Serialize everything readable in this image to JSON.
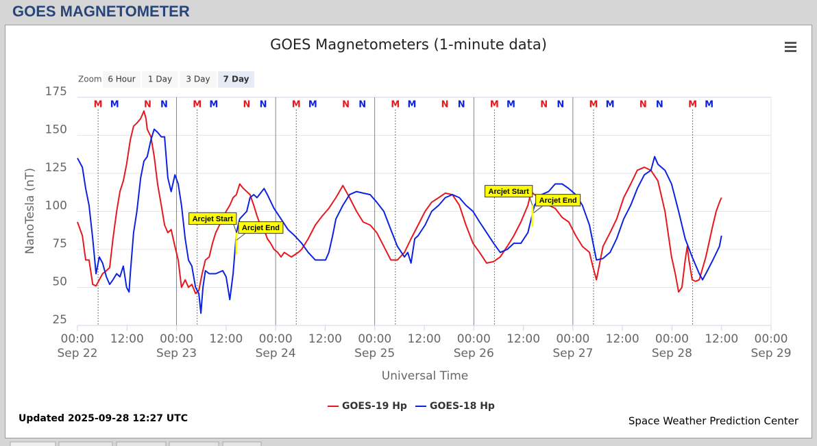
{
  "header": {
    "title": "GOES MAGNETOMETER"
  },
  "chart_data": {
    "type": "line",
    "title": "GOES Magnetometers (1-minute data)",
    "zoom": {
      "label": "Zoom",
      "buttons": [
        "6 Hour",
        "1 Day",
        "3 Day",
        "7 Day"
      ],
      "active": 3
    },
    "y_label": "NanoTesla (nT)",
    "x_label": "Universal Time",
    "xlim": [
      0,
      168
    ],
    "xticks": [
      {
        "value": 0,
        "label": "00:00",
        "date": "Sep 22"
      },
      {
        "value": 12,
        "label": "12:00"
      },
      {
        "value": 24,
        "label": "00:00",
        "date": "Sep 23"
      },
      {
        "value": 36,
        "label": "12:00"
      },
      {
        "value": 48,
        "label": "00:00",
        "date": "Sep 24"
      },
      {
        "value": 60,
        "label": "12:00"
      },
      {
        "value": 72,
        "label": "00:00",
        "date": "Sep 25"
      },
      {
        "value": 84,
        "label": "12:00"
      },
      {
        "value": 96,
        "label": "00:00",
        "date": "Sep 26"
      },
      {
        "value": 108,
        "label": "12:00"
      },
      {
        "value": 120,
        "label": "00:00",
        "date": "Sep 27"
      },
      {
        "value": 132,
        "label": "12:00"
      },
      {
        "value": 144,
        "label": "00:00",
        "date": "Sep 28"
      },
      {
        "value": 156,
        "label": "12:00"
      },
      {
        "value": 168,
        "label": "00:00",
        "date": "Sep 29"
      }
    ],
    "ylim": [
      25,
      175
    ],
    "yticks": [
      25,
      50,
      75,
      100,
      125,
      150,
      175
    ],
    "grid": true,
    "day_lines": [
      24,
      48,
      72,
      96,
      120
    ],
    "markers": [
      {
        "label": "M",
        "color": "#e8161c",
        "dotted": true,
        "x": [
          5,
          29,
          53,
          77,
          101,
          125,
          149
        ]
      },
      {
        "label": "M",
        "color": "#0a22e0",
        "x": [
          9,
          33,
          57,
          81,
          105,
          129,
          153
        ]
      },
      {
        "label": "N",
        "color": "#e8161c",
        "x": [
          17,
          41,
          65,
          89,
          113,
          137
        ]
      },
      {
        "label": "N",
        "color": "#0a22e0",
        "x": [
          21,
          45,
          69,
          93,
          117,
          141
        ]
      }
    ],
    "annotations": [
      {
        "text": "Arcjet Start",
        "x": 38.5,
        "y": 86
      },
      {
        "text": "Arcjet End",
        "x": 38.5,
        "y": 72
      },
      {
        "text": "Arcjet Start",
        "x": 110.2,
        "y": 104
      },
      {
        "text": "Arcjet End",
        "x": 110.5,
        "y": 90
      }
    ],
    "series": [
      {
        "name": "GOES-19 Hp",
        "color": "#e8161c",
        "x": [
          0,
          1.2,
          2.0,
          2.8,
          3.7,
          4.5,
          5.3,
          6.1,
          7.0,
          7.8,
          8.6,
          9.5,
          10.3,
          11.1,
          11.9,
          12.8,
          13.6,
          14.4,
          15.3,
          16.1,
          16.6,
          16.9,
          17.8,
          18.6,
          19.4,
          20.3,
          21.1,
          21.9,
          22.7,
          23.6,
          24.4,
          25.2,
          26.1,
          26.9,
          27.7,
          28.6,
          29.4,
          30.2,
          31.0,
          31.9,
          32.7,
          33.5,
          34.4,
          35.2,
          36.0,
          36.9,
          37.7,
          38.5,
          39.3,
          40.2,
          41.0,
          41.8,
          42.7,
          43.5,
          44.3,
          45.2,
          46.0,
          46.8,
          47.6,
          48.5,
          49.3,
          50.1,
          51.8,
          53.5,
          54.3,
          55.9,
          57.6,
          59.3,
          60.9,
          62.6,
          64.3,
          65.9,
          67.6,
          69.2,
          70.9,
          72.5,
          74.2,
          75.9,
          77.5,
          79.2,
          80.8,
          82.5,
          84.2,
          85.8,
          87.5,
          89.1,
          90.8,
          92.5,
          94.1,
          95.8,
          97.4,
          99.1,
          100.8,
          102.4,
          104.1,
          105.7,
          107.4,
          109.1,
          109.9,
          110.7,
          112.4,
          114.1,
          115.7,
          117.4,
          119.0,
          120.7,
          122.3,
          124.0,
          124.8,
          125.7,
          126.5,
          127.3,
          129.0,
          130.6,
          132.3,
          134.0,
          135.6,
          137.3,
          138.9,
          140.6,
          142.3,
          143.9,
          144.8,
          145.6,
          146.4,
          147.2,
          147.7,
          148.1,
          148.9,
          149.7,
          150.6,
          152.2,
          153.9,
          154.7,
          155.5,
          156.0
        ],
        "values": [
          93,
          84,
          68,
          68,
          52,
          51,
          55,
          59,
          61,
          63,
          82,
          100,
          113,
          120,
          131,
          147,
          156,
          158,
          161,
          166,
          161,
          154,
          149,
          136,
          118,
          104,
          91,
          86,
          88,
          77,
          68,
          50,
          55,
          50,
          52,
          46,
          48,
          59,
          68,
          70,
          79,
          86,
          91,
          95,
          100,
          104,
          109,
          111,
          118,
          115,
          113,
          111,
          104,
          97,
          91,
          88,
          82,
          79,
          75,
          73,
          70,
          73,
          70,
          73,
          75,
          82,
          91,
          97,
          102,
          109,
          117,
          109,
          100,
          93,
          91,
          86,
          77,
          68,
          68,
          73,
          82,
          91,
          100,
          106,
          109,
          112,
          111,
          104,
          91,
          79,
          73,
          66,
          67,
          70,
          77,
          84,
          93,
          104,
          113,
          111,
          109,
          104,
          102,
          96,
          93,
          84,
          77,
          73,
          64,
          55,
          66,
          77,
          86,
          95,
          109,
          118,
          127,
          129,
          127,
          120,
          100,
          70,
          59,
          47,
          50,
          68,
          77,
          68,
          55,
          54,
          55,
          70,
          91,
          100,
          106,
          109
        ]
      },
      {
        "name": "GOES-18 Hp",
        "color": "#0a22e0",
        "x": [
          0,
          1.2,
          2.0,
          2.8,
          3.7,
          4.5,
          5.3,
          6.1,
          7.0,
          7.8,
          8.6,
          9.5,
          10.3,
          11.1,
          11.9,
          12.5,
          12.8,
          13.6,
          14.4,
          15.3,
          16.1,
          16.9,
          17.8,
          18.6,
          19.4,
          20.3,
          21.1,
          21.9,
          22.7,
          23.6,
          24.4,
          25.2,
          26.1,
          26.9,
          27.7,
          28.6,
          29.4,
          29.9,
          30.4,
          31.0,
          31.9,
          33.5,
          35.2,
          36.0,
          36.9,
          37.7,
          38.5,
          39.3,
          41.0,
          41.8,
          42.7,
          43.5,
          45.2,
          46.0,
          47.6,
          49.3,
          51.0,
          52.6,
          54.3,
          55.9,
          57.6,
          60.1,
          60.9,
          61.8,
          62.6,
          64.3,
          65.9,
          67.6,
          69.2,
          70.9,
          72.5,
          74.2,
          75.9,
          77.5,
          79.2,
          80.0,
          80.8,
          81.7,
          82.5,
          84.2,
          85.8,
          87.5,
          89.1,
          90.8,
          92.5,
          94.1,
          95.8,
          97.4,
          99.1,
          100.8,
          102.4,
          104.1,
          105.7,
          107.4,
          109.1,
          110.7,
          112.4,
          114.1,
          115.7,
          117.4,
          119.0,
          120.7,
          122.3,
          124.0,
          125.7,
          127.3,
          129.0,
          130.6,
          132.3,
          134.0,
          135.6,
          137.3,
          138.9,
          139.8,
          140.6,
          142.3,
          143.9,
          145.6,
          147.2,
          148.9,
          150.6,
          151.4,
          152.2,
          153.9,
          155.5,
          156.0
        ],
        "values": [
          135,
          129,
          115,
          104,
          82,
          59,
          70,
          66,
          57,
          52,
          55,
          59,
          57,
          64,
          50,
          47,
          59,
          86,
          100,
          122,
          133,
          136,
          147,
          154,
          152,
          149,
          149,
          122,
          113,
          124,
          118,
          104,
          82,
          68,
          64,
          50,
          46,
          33,
          50,
          61,
          59,
          59,
          61,
          57,
          42,
          59,
          86,
          95,
          100,
          109,
          111,
          109,
          115,
          111,
          102,
          95,
          88,
          84,
          79,
          73,
          68,
          68,
          73,
          84,
          95,
          104,
          111,
          113,
          112,
          111,
          106,
          100,
          88,
          77,
          70,
          73,
          66,
          82,
          84,
          91,
          100,
          104,
          109,
          111,
          109,
          104,
          100,
          93,
          86,
          79,
          73,
          75,
          79,
          79,
          86,
          104,
          111,
          113,
          118,
          118,
          115,
          111,
          104,
          91,
          68,
          69,
          73,
          82,
          95,
          104,
          115,
          124,
          127,
          136,
          131,
          127,
          118,
          100,
          82,
          70,
          59,
          55,
          59,
          68,
          77,
          84
        ]
      }
    ],
    "updated": "Updated 2025-09-28 12:27 UTC",
    "credit": "Space Weather Prediction Center"
  }
}
